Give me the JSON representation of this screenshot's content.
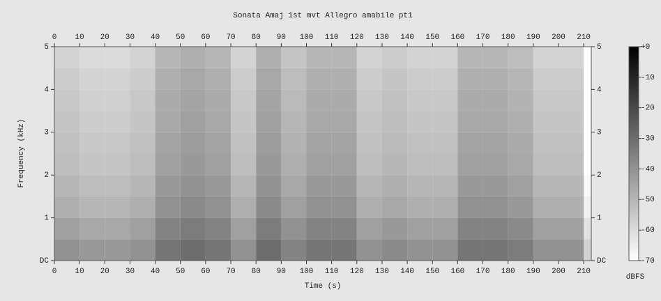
{
  "chart_data": {
    "type": "heatmap",
    "title": "Sonata Amaj 1st mvt Allegro amabile pt1",
    "x_label": "Time (s)",
    "y_label": "Frequency (kHz)",
    "xlim": [
      0,
      213
    ],
    "ylim": [
      0,
      5
    ],
    "xticks": [
      0,
      10,
      20,
      30,
      40,
      50,
      60,
      70,
      80,
      90,
      100,
      110,
      120,
      130,
      140,
      150,
      160,
      170,
      180,
      190,
      200,
      210
    ],
    "yticks": [
      {
        "value": 0,
        "label": "DC"
      },
      1,
      2,
      3,
      4,
      5
    ],
    "xbins": [
      0,
      10,
      20,
      30,
      40,
      50,
      60,
      70,
      80,
      90,
      100,
      110,
      120,
      130,
      140,
      150,
      160,
      170,
      180,
      190,
      200,
      210,
      213
    ],
    "ybins": [
      0,
      0.5,
      1,
      1.5,
      2,
      2.5,
      3,
      3.5,
      4,
      4.5,
      5
    ],
    "values": [
      [
        -40,
        -42,
        -42,
        -40,
        -32,
        -30,
        -32,
        -40,
        -30,
        -36,
        -32,
        -32,
        -40,
        -38,
        -40,
        -40,
        -32,
        -32,
        -34,
        -40,
        -40,
        -58
      ],
      [
        -44,
        -46,
        -46,
        -44,
        -36,
        -34,
        -36,
        -44,
        -34,
        -40,
        -36,
        -36,
        -44,
        -42,
        -44,
        -44,
        -36,
        -36,
        -38,
        -44,
        -44,
        -62
      ],
      [
        -48,
        -50,
        -50,
        -48,
        -40,
        -38,
        -40,
        -48,
        -38,
        -44,
        -40,
        -40,
        -48,
        -46,
        -48,
        -48,
        -40,
        -40,
        -42,
        -48,
        -48,
        -66
      ],
      [
        -50,
        -52,
        -52,
        -50,
        -42,
        -40,
        -42,
        -50,
        -40,
        -46,
        -42,
        -42,
        -50,
        -48,
        -50,
        -50,
        -42,
        -42,
        -44,
        -50,
        -50,
        -68
      ],
      [
        -52,
        -54,
        -54,
        -52,
        -44,
        -42,
        -44,
        -52,
        -42,
        -48,
        -44,
        -44,
        -52,
        -50,
        -52,
        -52,
        -44,
        -44,
        -46,
        -52,
        -52,
        -70
      ],
      [
        -53,
        -55,
        -55,
        -53,
        -45,
        -43,
        -45,
        -53,
        -43,
        -49,
        -45,
        -45,
        -53,
        -51,
        -53,
        -53,
        -45,
        -45,
        -47,
        -53,
        -53,
        -70
      ],
      [
        -54,
        -56,
        -56,
        -54,
        -46,
        -44,
        -46,
        -54,
        -44,
        -50,
        -46,
        -46,
        -54,
        -52,
        -54,
        -54,
        -46,
        -46,
        -48,
        -54,
        -54,
        -70
      ],
      [
        -55,
        -57,
        -57,
        -55,
        -47,
        -45,
        -47,
        -55,
        -45,
        -51,
        -47,
        -47,
        -55,
        -53,
        -55,
        -55,
        -47,
        -47,
        -49,
        -55,
        -55,
        -70
      ],
      [
        -56,
        -58,
        -58,
        -56,
        -48,
        -46,
        -48,
        -56,
        -46,
        -52,
        -48,
        -48,
        -56,
        -54,
        -56,
        -56,
        -48,
        -48,
        -50,
        -56,
        -56,
        -70
      ],
      [
        -58,
        -60,
        -60,
        -58,
        -50,
        -48,
        -50,
        -58,
        -48,
        -54,
        -50,
        -50,
        -58,
        -56,
        -58,
        -58,
        -50,
        -50,
        -52,
        -58,
        -58,
        -70
      ]
    ],
    "colorbar": {
      "label": "dBFS",
      "lim": [
        -70,
        0
      ],
      "ticks": [
        {
          "value": 0,
          "label": "+0"
        },
        -10,
        -20,
        -30,
        -40,
        -50,
        -60,
        -70
      ]
    }
  }
}
